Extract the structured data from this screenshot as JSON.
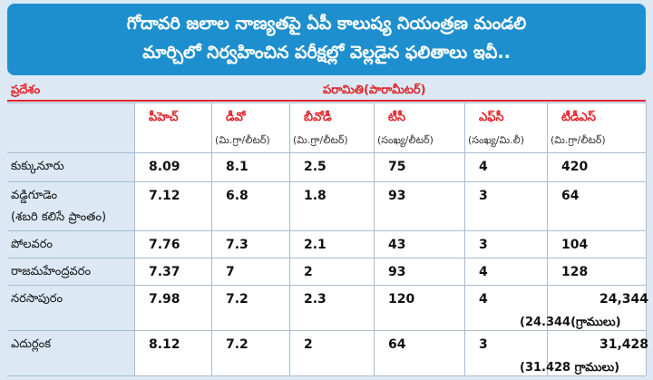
{
  "title": {
    "line1": "గోదావరి జలాల నాణ్యతపై ఏపీ కాలుష్య నియంత్రణ మండలి",
    "line2": "మార్చిలో నిర్వహించిన పరీక్షల్లో వెల్లడైన ఫలితాలు ఇవీ.."
  },
  "header": {
    "region": "ప్రదేశం",
    "parameter": "పరామితి(పారామీటర్)"
  },
  "columns": [
    {
      "name": "పీహెచ్",
      "unit": ""
    },
    {
      "name": "డీవో",
      "unit": "(మి.గ్రా/లీటర్)"
    },
    {
      "name": "బీవోడీ",
      "unit": "(మి.గ్రా/లీటర్)"
    },
    {
      "name": "టీసీ",
      "unit": "(సంఖ్య/లీటర్)"
    },
    {
      "name": "ఎఫ్‌సీ",
      "unit": "(సంఖ్య/మి.లీ)"
    },
    {
      "name": "టీడీఎస్",
      "unit": "(మి.గ్రా/లీటర్)"
    }
  ],
  "rows": [
    {
      "place": "కుక్కునూరు",
      "note": "",
      "values": [
        "8.09",
        "8.1",
        "2.5",
        "75",
        "4",
        "420"
      ],
      "tds_note": ""
    },
    {
      "place": "వడ్డిగూడెం",
      "note": "(శబరి కలిసే ప్రాంతం)",
      "values": [
        "7.12",
        "6.8",
        "1.8",
        "93",
        "3",
        "64"
      ],
      "tds_note": ""
    },
    {
      "place": "పోలవరం",
      "note": "",
      "values": [
        "7.76",
        "7.3",
        "2.1",
        "43",
        "3",
        "104"
      ],
      "tds_note": ""
    },
    {
      "place": "రాజమహేంద్రవరం",
      "note": "",
      "values": [
        "7.37",
        "7",
        "2",
        "93",
        "4",
        "128"
      ],
      "tds_note": ""
    },
    {
      "place": "నరసాపురం",
      "note": "",
      "values": [
        "7.98",
        "7.2",
        "2.3",
        "120",
        "4",
        "24,344"
      ],
      "tds_note": "(24.344(గ్రాములు)"
    },
    {
      "place": "ఎదుర్లంక",
      "note": "",
      "values": [
        "8.12",
        "7.2",
        "2",
        "64",
        "3",
        "31,428"
      ],
      "tds_note": "(31.428 గ్రాములు)"
    }
  ],
  "colors": {
    "title_bg": "#1e8fce",
    "page_bg": "#dce9f5",
    "header_red": "#e0262b"
  }
}
